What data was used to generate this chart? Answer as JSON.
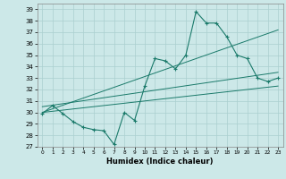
{
  "xlabel": "Humidex (Indice chaleur)",
  "xlim": [
    -0.5,
    23.5
  ],
  "ylim": [
    27,
    39.5
  ],
  "yticks": [
    27,
    28,
    29,
    30,
    31,
    32,
    33,
    34,
    35,
    36,
    37,
    38,
    39
  ],
  "xticks": [
    0,
    1,
    2,
    3,
    4,
    5,
    6,
    7,
    8,
    9,
    10,
    11,
    12,
    13,
    14,
    15,
    16,
    17,
    18,
    19,
    20,
    21,
    22,
    23
  ],
  "bg_color": "#cce8e8",
  "grid_color": "#aacfcf",
  "line_color": "#1a7a6a",
  "line1_x": [
    0,
    1,
    2,
    3,
    4,
    5,
    6,
    7,
    8,
    9,
    10,
    11,
    12,
    13,
    14,
    15,
    16,
    17,
    18,
    19,
    20,
    21,
    22,
    23
  ],
  "line1_y": [
    29.9,
    30.6,
    29.9,
    29.2,
    28.7,
    28.5,
    28.4,
    27.2,
    30.0,
    29.3,
    32.3,
    34.7,
    34.5,
    33.8,
    35.0,
    38.8,
    37.8,
    37.8,
    36.6,
    35.0,
    34.7,
    33.0,
    32.7,
    33.0
  ],
  "line2_x": [
    0,
    23
  ],
  "line2_y": [
    30.0,
    32.3
  ],
  "line3_x": [
    0,
    23
  ],
  "line3_y": [
    30.5,
    33.5
  ],
  "line4_x": [
    0,
    23
  ],
  "line4_y": [
    30.0,
    37.2
  ]
}
